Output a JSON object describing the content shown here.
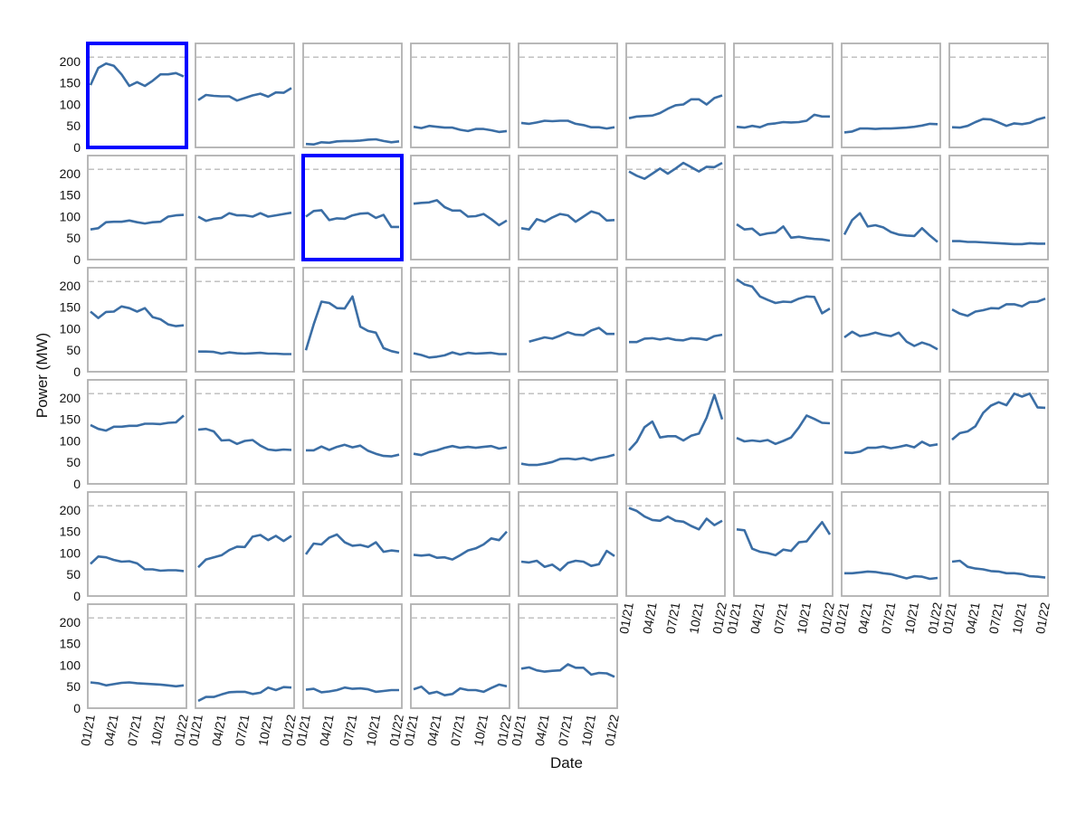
{
  "chart_data": {
    "type": "line",
    "y_label": "Power (MW)",
    "x_label": "Date",
    "x": [
      "01/21",
      "02/21",
      "03/21",
      "04/21",
      "05/21",
      "06/21",
      "07/21",
      "08/21",
      "09/21",
      "10/21",
      "11/21",
      "12/21",
      "01/22"
    ],
    "xticks": [
      "01/21",
      "04/21",
      "07/21",
      "10/21",
      "01/22"
    ],
    "ylim": [
      0,
      242
    ],
    "yticks": [
      0,
      50,
      100,
      150,
      200
    ],
    "reference_line": 210,
    "columns": 9,
    "color": "#3b6ea5",
    "highlight": [
      0,
      11
    ],
    "highlight_color": "#0000ff",
    "series": [
      {
        "values": [
          145,
          185,
          195,
          190,
          170,
          143,
          152,
          143,
          155,
          170,
          170,
          173,
          165
        ]
      },
      {
        "values": [
          110,
          122,
          120,
          119,
          119,
          109,
          115,
          121,
          125,
          118,
          128,
          127,
          138
        ]
      },
      {
        "values": [
          8,
          7,
          12,
          11,
          14,
          15,
          15,
          16,
          18,
          19,
          15,
          12,
          14
        ]
      },
      {
        "values": [
          48,
          45,
          50,
          48,
          46,
          46,
          41,
          38,
          43,
          43,
          40,
          36,
          38
        ]
      },
      {
        "values": [
          57,
          55,
          58,
          62,
          61,
          62,
          62,
          55,
          52,
          47,
          47,
          44,
          47
        ]
      },
      {
        "values": [
          68,
          72,
          73,
          74,
          80,
          90,
          98,
          100,
          112,
          112,
          100,
          115,
          121
        ]
      },
      {
        "values": [
          48,
          46,
          50,
          47,
          54,
          56,
          59,
          58,
          59,
          62,
          76,
          72,
          72
        ]
      },
      {
        "values": [
          35,
          37,
          44,
          44,
          43,
          44,
          44,
          45,
          46,
          48,
          51,
          55,
          54
        ]
      },
      {
        "values": [
          47,
          46,
          50,
          59,
          66,
          65,
          58,
          50,
          56,
          54,
          57,
          65,
          70
        ]
      },
      {
        "values": [
          70,
          73,
          87,
          88,
          88,
          91,
          87,
          84,
          87,
          88,
          100,
          103,
          104
        ]
      },
      {
        "values": [
          100,
          90,
          95,
          97,
          108,
          103,
          103,
          100,
          108,
          100,
          103,
          106,
          109
        ]
      },
      {
        "values": [
          100,
          113,
          115,
          92,
          96,
          95,
          103,
          107,
          108,
          97,
          104,
          76,
          76
        ]
      },
      {
        "values": [
          130,
          132,
          133,
          138,
          122,
          114,
          114,
          100,
          101,
          106,
          94,
          80,
          91
        ]
      },
      {
        "values": [
          73,
          70,
          94,
          88,
          98,
          106,
          103,
          88,
          100,
          112,
          107,
          91,
          92
        ]
      },
      {
        "values": [
          205,
          195,
          188,
          200,
          212,
          200,
          212,
          225,
          215,
          205,
          216,
          215,
          225
        ]
      },
      {
        "values": [
          82,
          70,
          72,
          57,
          61,
          63,
          77,
          51,
          53,
          50,
          48,
          47,
          44
        ]
      },
      {
        "values": [
          58,
          92,
          108,
          77,
          80,
          75,
          64,
          58,
          56,
          55,
          73,
          56,
          41
        ]
      },
      {
        "values": [
          43,
          43,
          41,
          41,
          40,
          39,
          38,
          37,
          36,
          36,
          38,
          37,
          37
        ]
      },
      {
        "values": [
          140,
          125,
          139,
          140,
          152,
          148,
          140,
          148,
          127,
          122,
          110,
          106,
          108
        ]
      },
      {
        "values": [
          47,
          47,
          46,
          42,
          45,
          43,
          42,
          43,
          44,
          42,
          42,
          41,
          41
        ]
      },
      {
        "values": [
          50,
          110,
          163,
          160,
          148,
          147,
          175,
          105,
          95,
          91,
          55,
          48,
          44
        ]
      },
      {
        "values": [
          43,
          39,
          33,
          35,
          38,
          45,
          40,
          44,
          42,
          43,
          44,
          41,
          41
        ]
      },
      {
        "values": [
          null,
          70,
          75,
          80,
          77,
          84,
          92,
          86,
          85,
          96,
          102,
          88,
          88
        ]
      },
      {
        "values": [
          69,
          69,
          77,
          78,
          75,
          78,
          74,
          73,
          78,
          77,
          74,
          83,
          86
        ]
      },
      {
        "values": [
          215,
          203,
          198,
          175,
          167,
          160,
          163,
          162,
          170,
          175,
          174,
          136,
          147
        ]
      },
      {
        "values": [
          80,
          93,
          83,
          86,
          91,
          86,
          83,
          91,
          70,
          60,
          68,
          62,
          52
        ]
      },
      {
        "values": [
          145,
          135,
          130,
          140,
          143,
          148,
          147,
          157,
          157,
          152,
          162,
          163,
          170
        ]
      },
      {
        "values": [
          137,
          128,
          124,
          133,
          133,
          135,
          135,
          140,
          140,
          139,
          142,
          143,
          159
        ]
      },
      {
        "values": [
          126,
          128,
          122,
          101,
          102,
          93,
          100,
          102,
          89,
          80,
          78,
          80,
          79
        ]
      },
      {
        "values": [
          78,
          78,
          87,
          79,
          86,
          91,
          85,
          89,
          77,
          70,
          65,
          64,
          68
        ]
      },
      {
        "values": [
          70,
          67,
          74,
          78,
          84,
          88,
          84,
          86,
          84,
          86,
          88,
          82,
          85
        ]
      },
      {
        "values": [
          47,
          44,
          44,
          47,
          51,
          58,
          59,
          57,
          60,
          55,
          60,
          63,
          68
        ]
      },
      {
        "values": [
          78,
          98,
          132,
          145,
          108,
          111,
          111,
          101,
          112,
          117,
          154,
          207,
          150
        ]
      },
      {
        "values": [
          107,
          99,
          101,
          99,
          102,
          93,
          100,
          108,
          131,
          159,
          151,
          142,
          141
        ]
      },
      {
        "values": [
          73,
          72,
          75,
          84,
          84,
          87,
          83,
          86,
          90,
          85,
          98,
          89,
          92
        ]
      },
      {
        "values": [
          103,
          118,
          122,
          134,
          165,
          182,
          190,
          183,
          210,
          203,
          210,
          178,
          177
        ]
      },
      {
        "values": [
          75,
          92,
          90,
          84,
          80,
          81,
          76,
          62,
          62,
          59,
          60,
          60,
          58
        ]
      },
      {
        "values": [
          67,
          85,
          90,
          95,
          107,
          115,
          114,
          138,
          142,
          130,
          140,
          128,
          140
        ]
      },
      {
        "values": [
          97,
          122,
          120,
          136,
          143,
          125,
          117,
          119,
          114,
          125,
          103,
          106,
          104
        ]
      },
      {
        "values": [
          96,
          94,
          96,
          89,
          90,
          85,
          95,
          106,
          111,
          120,
          134,
          130,
          150
        ]
      },
      {
        "values": [
          80,
          78,
          82,
          68,
          73,
          60,
          77,
          82,
          80,
          70,
          74,
          105,
          93
        ]
      },
      {
        "values": [
          205,
          198,
          185,
          177,
          175,
          185,
          175,
          173,
          163,
          155,
          180,
          165,
          175
        ]
      },
      {
        "values": [
          155,
          153,
          110,
          103,
          100,
          95,
          108,
          105,
          125,
          127,
          150,
          172,
          143
        ]
      },
      {
        "values": [
          53,
          53,
          55,
          57,
          56,
          53,
          51,
          46,
          41,
          46,
          45,
          40,
          42
        ]
      },
      {
        "values": [
          80,
          82,
          68,
          64,
          62,
          58,
          57,
          53,
          53,
          51,
          46,
          45,
          43
        ]
      },
      {
        "values": [
          60,
          58,
          53,
          56,
          59,
          60,
          58,
          57,
          56,
          55,
          53,
          51,
          53
        ]
      },
      {
        "values": [
          17,
          26,
          26,
          32,
          37,
          38,
          38,
          33,
          36,
          48,
          42,
          49,
          48
        ]
      },
      {
        "values": [
          43,
          45,
          37,
          39,
          42,
          48,
          45,
          46,
          44,
          38,
          40,
          42,
          42
        ]
      },
      {
        "values": [
          44,
          50,
          34,
          38,
          30,
          33,
          46,
          42,
          42,
          38,
          47,
          55,
          51
        ]
      },
      {
        "values": [
          92,
          95,
          88,
          85,
          87,
          88,
          102,
          94,
          94,
          78,
          82,
          81,
          73
        ]
      }
    ]
  }
}
